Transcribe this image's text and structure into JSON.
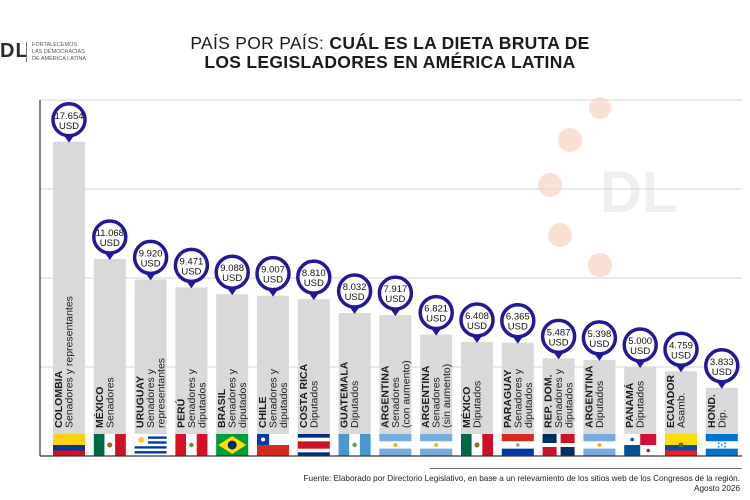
{
  "logo": {
    "mark": "DL",
    "tagline": "FORTALECEMOS\nLAS DEMOCRACIAS\nDE AMÉRICA LATINA"
  },
  "watermark": "DL",
  "title": {
    "part1": "PAÍS POR PAÍS: ",
    "part2": "CUÁL ES LA DIETA BRUTA DE",
    "part3": "LOS LEGISLADORES EN AMÉRICA LATINA"
  },
  "footer": {
    "line1": "Fuente: Elaborado por Directorio Legislativo, en base a un relevamiento de los sitios web de los Congresos de la región.",
    "line2": "Agosto 2026"
  },
  "colors": {
    "bar": "#d9d9d9",
    "badge": "#22199a",
    "grid": "#d6d6d6",
    "accent_dots": "#f6c9b0"
  },
  "chart_data": {
    "type": "bar",
    "unit": "USD",
    "ylim": [
      0,
      20000
    ],
    "grid": true,
    "categories": [
      {
        "country": "COLOMBIA",
        "sub": [
          "Senadores y representantes"
        ],
        "value": 17654,
        "display": "17.654",
        "flag": "colombia"
      },
      {
        "country": "MÉXICO",
        "sub": [
          "Senadores"
        ],
        "value": 11068,
        "display": "11.068",
        "flag": "mexico"
      },
      {
        "country": "URUGUAY",
        "sub": [
          "Senadores y",
          "representantes"
        ],
        "value": 9920,
        "display": "9.920",
        "flag": "uruguay"
      },
      {
        "country": "PERÚ",
        "sub": [
          "Senadores y",
          "diputados"
        ],
        "value": 9471,
        "display": "9.471",
        "flag": "peru"
      },
      {
        "country": "BRASIL",
        "sub": [
          "Senadores y",
          "diputados"
        ],
        "value": 9088,
        "display": "9.088",
        "flag": "brasil"
      },
      {
        "country": "CHILE",
        "sub": [
          "Senadores y",
          "diputados"
        ],
        "value": 9007,
        "display": "9.007",
        "flag": "chile"
      },
      {
        "country": "COSTA RICA",
        "sub": [
          "Diputados"
        ],
        "value": 8810,
        "display": "8.810",
        "flag": "costarica"
      },
      {
        "country": "GUATEMALA",
        "sub": [
          "Diputados"
        ],
        "value": 8032,
        "display": "8.032",
        "flag": "guatemala"
      },
      {
        "country": "ARGENTINA",
        "sub": [
          "Senadores",
          "(con aumento)"
        ],
        "value": 7917,
        "display": "7.917",
        "flag": "argentina"
      },
      {
        "country": "ARGENTINA",
        "sub": [
          "Senadores",
          "(sin aumento)"
        ],
        "value": 6821,
        "display": "6.821",
        "flag": "argentina"
      },
      {
        "country": "MÉXICO",
        "sub": [
          "Diputados"
        ],
        "value": 6408,
        "display": "6.408",
        "flag": "mexico"
      },
      {
        "country": "PARAGUAY",
        "sub": [
          "Senadores y",
          "diputados"
        ],
        "value": 6365,
        "display": "6.365",
        "flag": "paraguay"
      },
      {
        "country": "REP. DOM.",
        "sub": [
          "Senadores y",
          "diputados"
        ],
        "value": 5487,
        "display": "5.487",
        "flag": "repdom"
      },
      {
        "country": "ARGENTINA",
        "sub": [
          "Diputados"
        ],
        "value": 5398,
        "display": "5.398",
        "flag": "argentina"
      },
      {
        "country": "PANAMÁ",
        "sub": [
          "Diputados"
        ],
        "value": 5000,
        "display": "5.000",
        "flag": "panama"
      },
      {
        "country": "ECUADOR",
        "sub": [
          "Asamb."
        ],
        "value": 4759,
        "display": "4.759",
        "flag": "ecuador"
      },
      {
        "country": "HOND.",
        "sub": [
          "Dip."
        ],
        "value": 3833,
        "display": "3.833",
        "flag": "honduras"
      }
    ]
  }
}
